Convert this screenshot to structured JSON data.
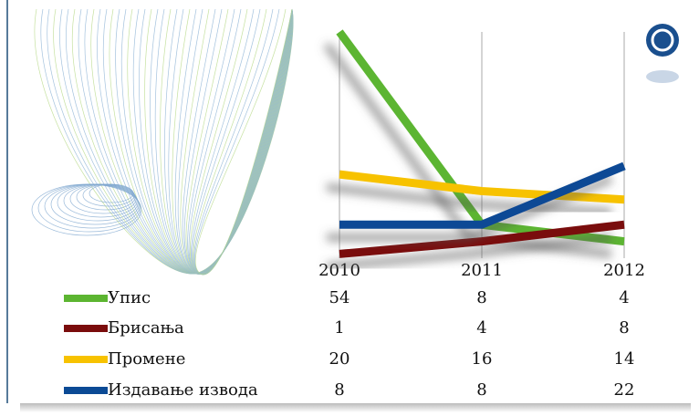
{
  "chart_data": {
    "type": "line",
    "categories": [
      "2010",
      "2011",
      "2012"
    ],
    "series": [
      {
        "name": "Упис",
        "color": "#5cb531",
        "values": [
          54,
          8,
          4
        ]
      },
      {
        "name": "Брисања",
        "color": "#7a0c0c",
        "values": [
          1,
          4,
          8
        ]
      },
      {
        "name": "Промене",
        "color": "#f7c200",
        "values": [
          20,
          16,
          14
        ]
      },
      {
        "name": "Издавање извода",
        "color": "#0b4a95",
        "values": [
          8,
          8,
          22
        ]
      }
    ]
  }
}
